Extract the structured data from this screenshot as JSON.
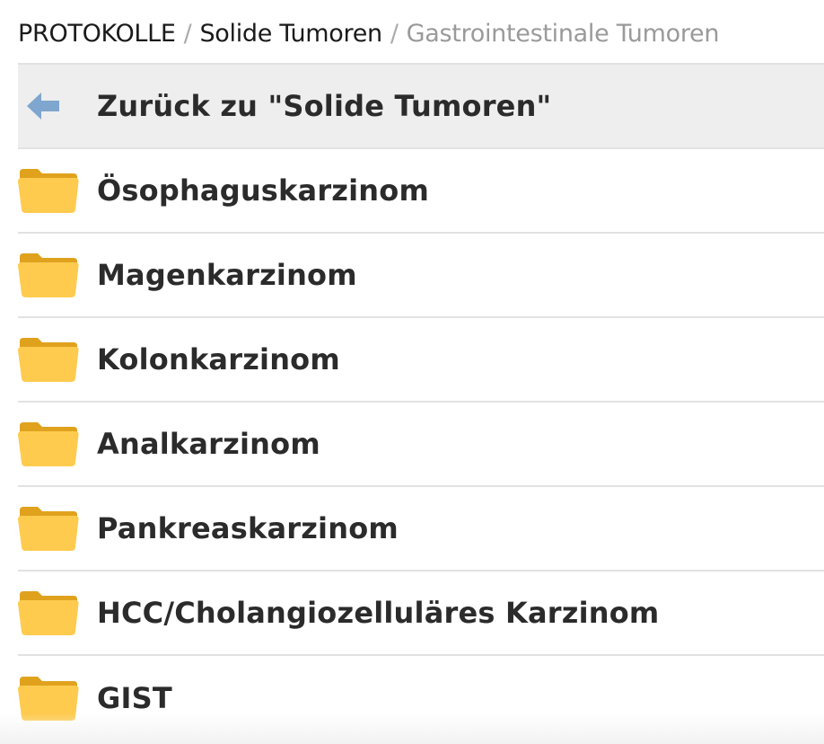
{
  "breadcrumb": {
    "items": [
      "PROTOKOLLE",
      "Solide Tumoren"
    ],
    "separator": "/",
    "current": "Gastrointestinale Tumoren"
  },
  "back": {
    "label": "Zurück zu \"Solide Tumoren\"",
    "icon": "arrow-left-icon"
  },
  "folders": [
    {
      "label": "Ösophaguskarzinom",
      "icon": "folder-icon"
    },
    {
      "label": "Magenkarzinom",
      "icon": "folder-icon"
    },
    {
      "label": "Kolonkarzinom",
      "icon": "folder-icon"
    },
    {
      "label": "Analkarzinom",
      "icon": "folder-icon"
    },
    {
      "label": "Pankreaskarzinom",
      "icon": "folder-icon"
    },
    {
      "label": "HCC/Cholangiozelluläres Karzinom",
      "icon": "folder-icon"
    },
    {
      "label": "GIST",
      "icon": "folder-icon"
    }
  ],
  "colors": {
    "folder_front": "#FFCB4F",
    "folder_back": "#E0A21D",
    "back_arrow": "#7EA6CE",
    "back_row_bg": "#EEEEEE",
    "divider": "#E2E2E2"
  }
}
